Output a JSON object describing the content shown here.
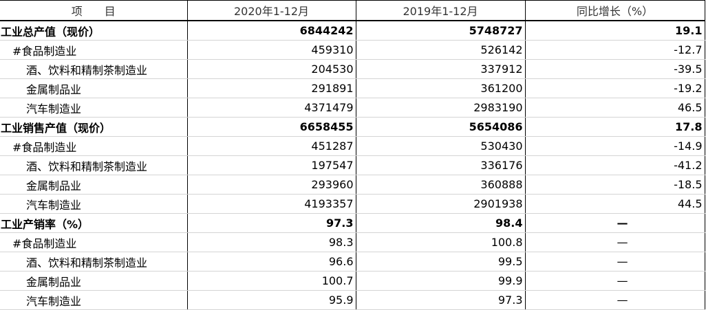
{
  "table": {
    "header": [
      "项　　目",
      "2020年1-12月",
      "2019年1-12月",
      "同比增长（%）"
    ],
    "rows": [
      [
        "工业总产值（现价）",
        "6844242",
        "5748727",
        "19.1"
      ],
      [
        "#食品制造业",
        "459310",
        "526142",
        "-12.7"
      ],
      [
        "酒、饮料和精制茶制造业",
        "204530",
        "337912",
        "-39.5"
      ],
      [
        "金属制品业",
        "291891",
        "361200",
        "-19.2"
      ],
      [
        "汽车制造业",
        "4371479",
        "2983190",
        "46.5"
      ],
      [
        "工业销售产值（现价）",
        "6658455",
        "5654086",
        "17.8"
      ],
      [
        "#食品制造业",
        "451287",
        "530430",
        "-14.9"
      ],
      [
        "酒、饮料和精制茶制造业",
        "197547",
        "336176",
        "-41.2"
      ],
      [
        "金属制品业",
        "293960",
        "360888",
        "-18.5"
      ],
      [
        "汽车制造业",
        "4193357",
        "2901938",
        "44.5"
      ],
      [
        "工业产销率（%）",
        "97.3",
        "98.4",
        "—"
      ],
      [
        "#食品制造业",
        "98.3",
        "100.8",
        "—"
      ],
      [
        "酒、饮料和精制茶制造业",
        "96.6",
        "99.5",
        "—"
      ],
      [
        "金属制品业",
        "100.7",
        "99.9",
        "—"
      ],
      [
        "汽车制造业",
        "95.9",
        "97.3",
        "—"
      ]
    ]
  }
}
